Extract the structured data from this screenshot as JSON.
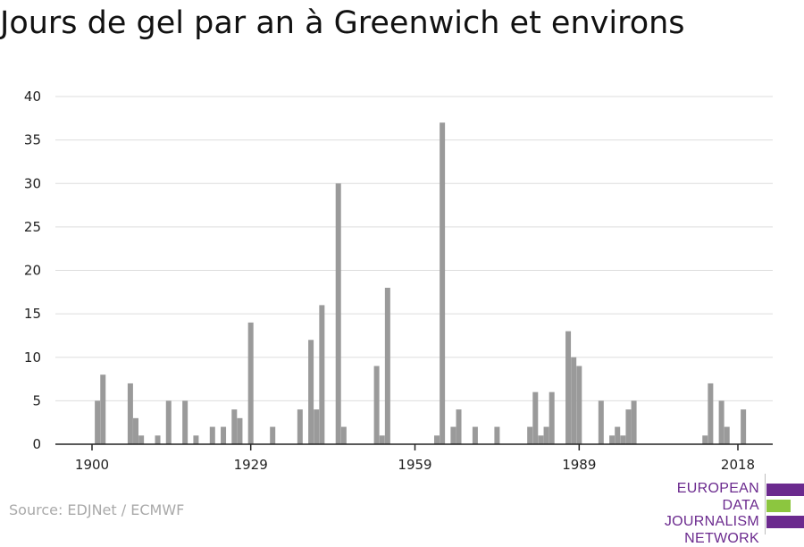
{
  "header": {
    "title": "Jours de gel par an à Greenwich et environs"
  },
  "footer": {
    "source": "Source: EDJNet / ECMWF"
  },
  "logo": {
    "line1": "EUROPEAN",
    "line2": "DATA JOURNALISM",
    "line3": "NETWORK",
    "color_purple": "#6b2a8e",
    "color_green": "#8cc63f"
  },
  "colors": {
    "bar": "#9a9a9a",
    "grid": "#dddddd",
    "axis": "#222222"
  },
  "chart_data": {
    "type": "bar",
    "title": "Jours de gel par an à Greenwich et environs",
    "xlabel": "",
    "ylabel": "",
    "x_ticks": [
      1900,
      1929,
      1959,
      1989,
      2018
    ],
    "y_ticks": [
      0,
      5,
      10,
      15,
      20,
      25,
      30,
      35,
      40
    ],
    "xlim": [
      1900,
      2018
    ],
    "ylim": [
      0,
      40
    ],
    "grid": true,
    "x": [
      1901,
      1902,
      1907,
      1908,
      1909,
      1912,
      1914,
      1917,
      1919,
      1922,
      1924,
      1926,
      1927,
      1929,
      1933,
      1938,
      1940,
      1941,
      1942,
      1945,
      1946,
      1952,
      1953,
      1954,
      1963,
      1964,
      1966,
      1967,
      1970,
      1974,
      1980,
      1981,
      1982,
      1983,
      1984,
      1987,
      1988,
      1989,
      1993,
      1995,
      1996,
      1997,
      1998,
      1999,
      2012,
      2013,
      2015,
      2016,
      2019
    ],
    "values": [
      5,
      8,
      7,
      3,
      1,
      1,
      5,
      5,
      1,
      2,
      2,
      4,
      3,
      14,
      2,
      4,
      12,
      4,
      16,
      30,
      2,
      9,
      1,
      18,
      1,
      37,
      2,
      4,
      2,
      2,
      2,
      6,
      1,
      2,
      6,
      13,
      10,
      9,
      5,
      1,
      2,
      1,
      4,
      5,
      1,
      7,
      5,
      2,
      4
    ]
  }
}
